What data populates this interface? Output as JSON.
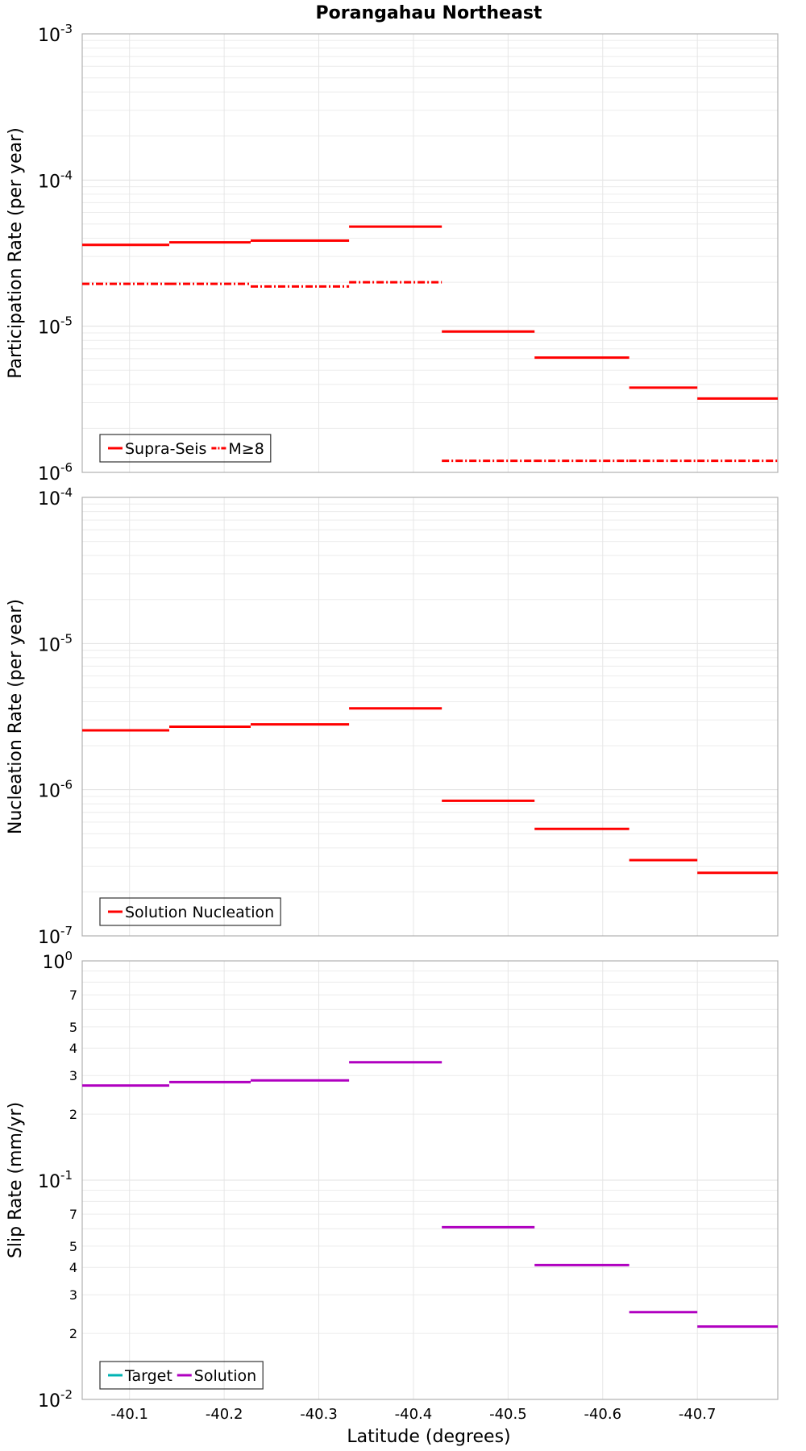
{
  "figure": {
    "title": "Porangahau Northeast",
    "xlabel": "Latitude (degrees)",
    "xlim": [
      -40.05,
      -40.785
    ],
    "xticks": [
      -40.1,
      -40.2,
      -40.3,
      -40.4,
      -40.5,
      -40.6,
      -40.7
    ],
    "xtick_labels": [
      "-40.1",
      "-40.2",
      "-40.3",
      "-40.4",
      "-40.5",
      "-40.6",
      "-40.7"
    ]
  },
  "chart_data": [
    {
      "type": "line",
      "name": "participation",
      "ylabel": "Participation Rate (per year)",
      "yscale": "log",
      "ylim_exp": [
        -6,
        -3
      ],
      "ytick_labels": [
        {
          "base": "10",
          "exp": "-6"
        },
        {
          "base": "10",
          "exp": "-5"
        },
        {
          "base": "10",
          "exp": "-4"
        },
        {
          "base": "10",
          "exp": "-3"
        }
      ],
      "minor_tick_labels": [],
      "grid": true,
      "legend": "bottom-left",
      "series": [
        {
          "name": "Supra-Seis",
          "color": "#ff0000",
          "style": "solid",
          "segments": [
            {
              "x0": -40.05,
              "x1": -40.142,
              "y": 3.6e-05
            },
            {
              "x0": -40.142,
              "x1": -40.228,
              "y": 3.75e-05
            },
            {
              "x0": -40.228,
              "x1": -40.332,
              "y": 3.85e-05
            },
            {
              "x0": -40.332,
              "x1": -40.43,
              "y": 4.8e-05
            },
            {
              "x0": -40.43,
              "x1": -40.528,
              "y": 9.2e-06
            },
            {
              "x0": -40.528,
              "x1": -40.628,
              "y": 6.1e-06
            },
            {
              "x0": -40.628,
              "x1": -40.7,
              "y": 3.8e-06
            },
            {
              "x0": -40.7,
              "x1": -40.785,
              "y": 3.2e-06
            }
          ]
        },
        {
          "name": "M≥8",
          "color": "#ff0000",
          "style": "dashdot",
          "segments": [
            {
              "x0": -40.05,
              "x1": -40.142,
              "y": 1.95e-05
            },
            {
              "x0": -40.142,
              "x1": -40.228,
              "y": 1.95e-05
            },
            {
              "x0": -40.228,
              "x1": -40.332,
              "y": 1.87e-05
            },
            {
              "x0": -40.332,
              "x1": -40.43,
              "y": 2e-05
            },
            {
              "x0": -40.43,
              "x1": -40.528,
              "y": 1.2e-06
            },
            {
              "x0": -40.528,
              "x1": -40.628,
              "y": 1.2e-06
            },
            {
              "x0": -40.628,
              "x1": -40.7,
              "y": 1.2e-06
            },
            {
              "x0": -40.7,
              "x1": -40.785,
              "y": 1.2e-06
            }
          ]
        }
      ]
    },
    {
      "type": "line",
      "name": "nucleation",
      "ylabel": "Nucleation Rate (per year)",
      "yscale": "log",
      "ylim_exp": [
        -7,
        -4
      ],
      "ytick_labels": [
        {
          "base": "10",
          "exp": "-7"
        },
        {
          "base": "10",
          "exp": "-6"
        },
        {
          "base": "10",
          "exp": "-5"
        },
        {
          "base": "10",
          "exp": "-4"
        }
      ],
      "minor_tick_labels": [],
      "grid": true,
      "legend": "bottom-left",
      "series": [
        {
          "name": "Solution Nucleation",
          "color": "#ff0000",
          "style": "solid",
          "segments": [
            {
              "x0": -40.05,
              "x1": -40.142,
              "y": 2.55e-06
            },
            {
              "x0": -40.142,
              "x1": -40.228,
              "y": 2.7e-06
            },
            {
              "x0": -40.228,
              "x1": -40.332,
              "y": 2.8e-06
            },
            {
              "x0": -40.332,
              "x1": -40.43,
              "y": 3.6e-06
            },
            {
              "x0": -40.43,
              "x1": -40.528,
              "y": 8.4e-07
            },
            {
              "x0": -40.528,
              "x1": -40.628,
              "y": 5.4e-07
            },
            {
              "x0": -40.628,
              "x1": -40.7,
              "y": 3.3e-07
            },
            {
              "x0": -40.7,
              "x1": -40.785,
              "y": 2.7e-07
            }
          ]
        }
      ]
    },
    {
      "type": "line",
      "name": "slip",
      "ylabel": "Slip Rate (mm/yr)",
      "yscale": "log",
      "ylim_exp": [
        -2,
        0
      ],
      "ytick_labels": [
        {
          "base": "10",
          "exp": "-2"
        },
        {
          "base": "10",
          "exp": "-1"
        },
        {
          "base": "10",
          "exp": "0"
        }
      ],
      "minor_tick_labels": [
        {
          "value": 0.02,
          "label": "2"
        },
        {
          "value": 0.03,
          "label": "3"
        },
        {
          "value": 0.04,
          "label": "4"
        },
        {
          "value": 0.05,
          "label": "5"
        },
        {
          "value": 0.07,
          "label": "7"
        },
        {
          "value": 0.2,
          "label": "2"
        },
        {
          "value": 0.3,
          "label": "3"
        },
        {
          "value": 0.4,
          "label": "4"
        },
        {
          "value": 0.5,
          "label": "5"
        },
        {
          "value": 0.7,
          "label": "7"
        }
      ],
      "grid": true,
      "legend": "bottom-left",
      "series": [
        {
          "name": "Target",
          "color": "#00b3b3",
          "style": "solid",
          "segments": []
        },
        {
          "name": "Solution",
          "color": "#b000c0",
          "style": "solid",
          "segments": [
            {
              "x0": -40.05,
              "x1": -40.142,
              "y": 0.27
            },
            {
              "x0": -40.142,
              "x1": -40.228,
              "y": 0.28
            },
            {
              "x0": -40.228,
              "x1": -40.332,
              "y": 0.285
            },
            {
              "x0": -40.332,
              "x1": -40.43,
              "y": 0.345
            },
            {
              "x0": -40.43,
              "x1": -40.528,
              "y": 0.061
            },
            {
              "x0": -40.528,
              "x1": -40.628,
              "y": 0.041
            },
            {
              "x0": -40.628,
              "x1": -40.7,
              "y": 0.025
            },
            {
              "x0": -40.7,
              "x1": -40.785,
              "y": 0.0215
            }
          ]
        }
      ]
    }
  ]
}
